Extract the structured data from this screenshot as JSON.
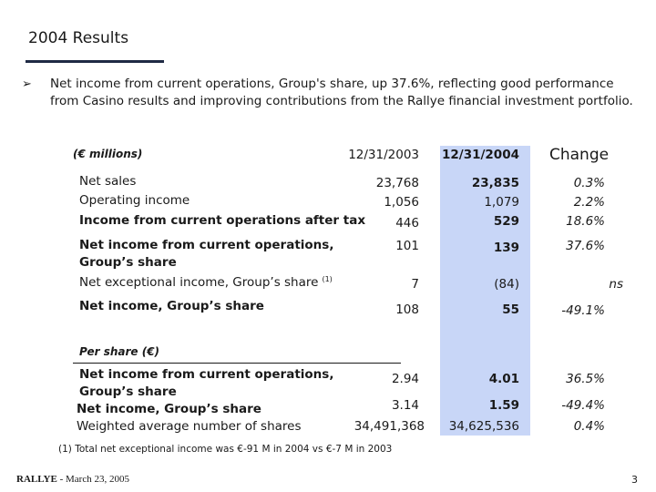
{
  "title": "2004 Results",
  "bullet": "Net income from current operations, Group's share, up 37.6%, reflecting good performance from Casino results and improving contributions from the Rallye financial investment portfolio.",
  "table": {
    "units": "(€ millions)",
    "headers": {
      "col1": "12/31/2003",
      "col2": "12/31/2004",
      "col3": "Change"
    },
    "rows": [
      {
        "label": "Net sales",
        "v2003": "23,768",
        "v2004": "23,835",
        "change": "0.3%"
      },
      {
        "label": "Operating income",
        "v2003": "1,056",
        "v2004": "1,079",
        "change": "2.2%"
      },
      {
        "label": "Income from current operations after tax",
        "v2003": "446",
        "v2004": "529",
        "change": "18.6%"
      },
      {
        "label": "Net income from current operations, Group’s share",
        "v2003": "101",
        "v2004": "139",
        "change": "37.6%"
      },
      {
        "label": "Net exceptional income, Group’s share",
        "note": "(1)",
        "v2003": "7",
        "v2004": "(84)",
        "change": "ns"
      },
      {
        "label": "Net income, Group’s share",
        "v2003": "108",
        "v2004": "55",
        "change": "-49.1%"
      }
    ],
    "per_share": {
      "heading": "Per share (€)",
      "rows": [
        {
          "label": "Net income from current operations, Group’s share",
          "v2003": "2.94",
          "v2004": "4.01",
          "change": "36.5%"
        },
        {
          "label": "Net income, Group’s share",
          "v2003": "3.14",
          "v2004": "1.59",
          "change": "-49.4%"
        },
        {
          "label": "Weighted average number of shares",
          "v2003": "34,491,368",
          "v2004": "34,625,536",
          "change": "0.4%"
        }
      ]
    }
  },
  "footnote": "(1) Total net exceptional income was €-91 M in 2004 vs €-7 M in 2003",
  "footer": {
    "brand": "RALLYE",
    "date": " - March 23, 2005"
  },
  "page_number": "3"
}
